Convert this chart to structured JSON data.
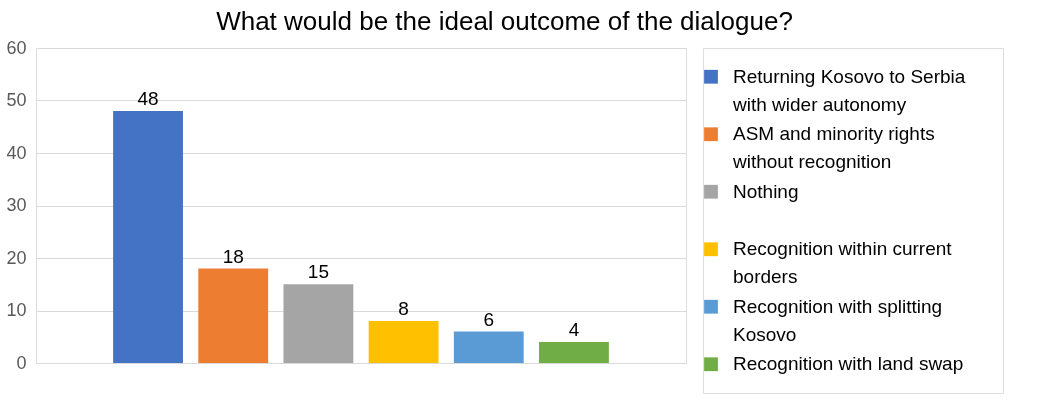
{
  "chart_data": {
    "type": "bar",
    "title": "What would be the ideal outcome of the dialogue?",
    "categories": [
      null
    ],
    "series": [
      {
        "name": "Returning Kosovo to Serbia with wider autonomy",
        "color": "#4472c4",
        "values": [
          48
        ]
      },
      {
        "name": "ASM and minority rights without recognition",
        "color": "#ed7d31",
        "values": [
          18
        ]
      },
      {
        "name": "Nothing",
        "color": "#a5a5a5",
        "values": [
          15
        ]
      },
      {
        "name": "Recognition within current borders",
        "color": "#ffc000",
        "values": [
          8
        ]
      },
      {
        "name": "Recognition with splitting Kosovo",
        "color": "#5b9bd5",
        "values": [
          6
        ]
      },
      {
        "name": "Recognition with land swap",
        "color": "#70ad47",
        "values": [
          4
        ]
      }
    ],
    "ylim": [
      0,
      60
    ],
    "yticks": [
      0,
      10,
      20,
      30,
      40,
      50,
      60
    ],
    "grid": "y",
    "legend": "right",
    "data_labels": true,
    "tick_labels": "y"
  }
}
